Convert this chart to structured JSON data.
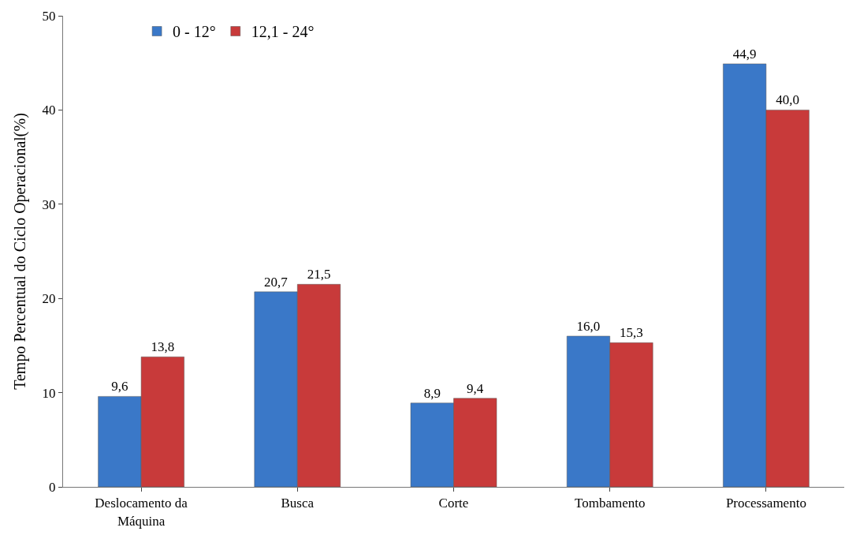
{
  "chart_data": {
    "type": "bar",
    "ylabel": "Tempo Percentual do Ciclo Operacional(%)",
    "categories": [
      "Deslocamento da Máquina",
      "Busca",
      "Corte",
      "Tombamento",
      "Processamento"
    ],
    "series": [
      {
        "name": "0 - 12°",
        "color": "#3a78c8",
        "values": [
          9.6,
          20.7,
          8.9,
          16.0,
          44.9
        ],
        "value_labels": [
          "9,6",
          "20,7",
          "8,9",
          "16,0",
          "44,9"
        ]
      },
      {
        "name": "12,1 - 24°",
        "color": "#c83a3a",
        "values": [
          13.8,
          21.5,
          9.4,
          15.3,
          40.0
        ],
        "value_labels": [
          "13,8",
          "21,5",
          "9,4",
          "15,3",
          "40,0"
        ]
      }
    ],
    "ylim": [
      0,
      50
    ],
    "yticks": [
      0,
      10,
      20,
      30,
      40,
      50
    ],
    "legend": "top left"
  }
}
